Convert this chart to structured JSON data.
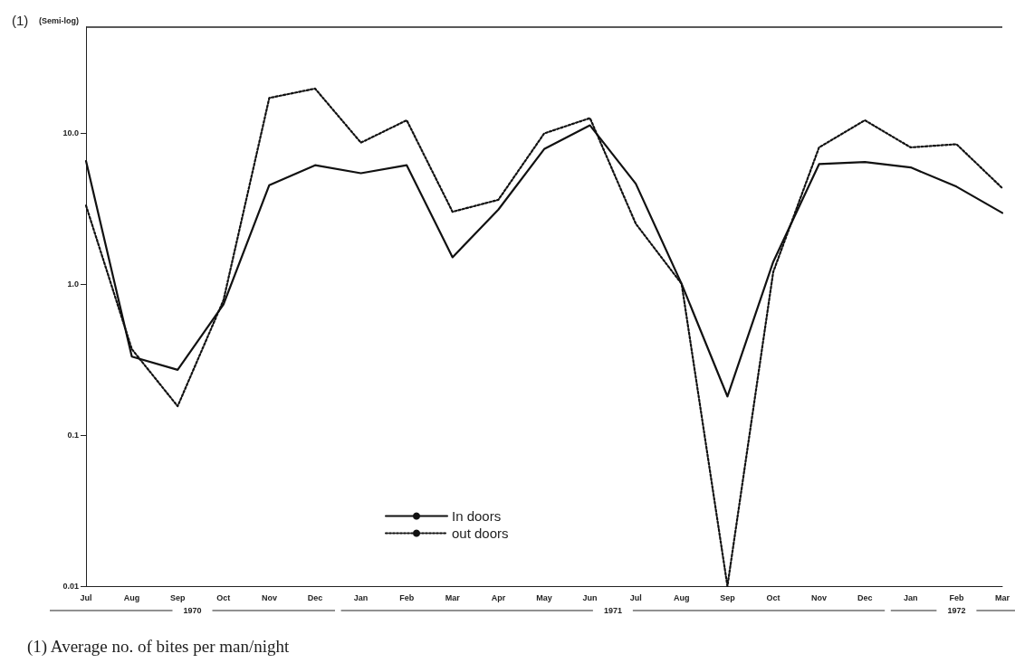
{
  "chart_data": {
    "type": "line",
    "title": "(1)",
    "subtitle": "(Semi-log)",
    "categories": [
      "Jul",
      "Aug",
      "Sep",
      "Oct",
      "Nov",
      "Dec",
      "Jan",
      "Feb",
      "Mar",
      "Apr",
      "May",
      "Jun",
      "Jul",
      "Aug",
      "Sep",
      "Oct",
      "Nov",
      "Dec",
      "Jan",
      "Feb",
      "Mar"
    ],
    "series": [
      {
        "name": "In doors",
        "color": "#111111",
        "line_style": "solid",
        "values": [
          6.5,
          0.33,
          0.27,
          0.73,
          4.5,
          6.1,
          5.4,
          6.1,
          1.5,
          3.1,
          7.8,
          11.2,
          4.6,
          1.0,
          0.18,
          1.4,
          6.2,
          6.4,
          5.9,
          4.4,
          2.95
        ]
      },
      {
        "name": "out doors",
        "color": "#111111",
        "line_style": "dotted",
        "values": [
          3.3,
          0.37,
          0.155,
          0.78,
          17,
          19.6,
          8.6,
          12.1,
          3.0,
          3.6,
          9.9,
          12.5,
          2.5,
          1.0,
          0.01,
          1.2,
          8.0,
          12.1,
          8.0,
          8.4,
          4.3
        ]
      }
    ],
    "log": true,
    "ylim": [
      0.01,
      50
    ],
    "yticks": [
      {
        "value": 0.01,
        "label": "0.01"
      },
      {
        "value": 0.1,
        "label": "0.1"
      },
      {
        "value": 1,
        "label": "1.0"
      },
      {
        "value": 10,
        "label": "10.0"
      }
    ],
    "grid": false,
    "legend": "bottom",
    "marker": "none",
    "annotations": [
      "1970",
      "1971",
      "1972",
      "(1) Average no. of bites per man/night"
    ]
  }
}
